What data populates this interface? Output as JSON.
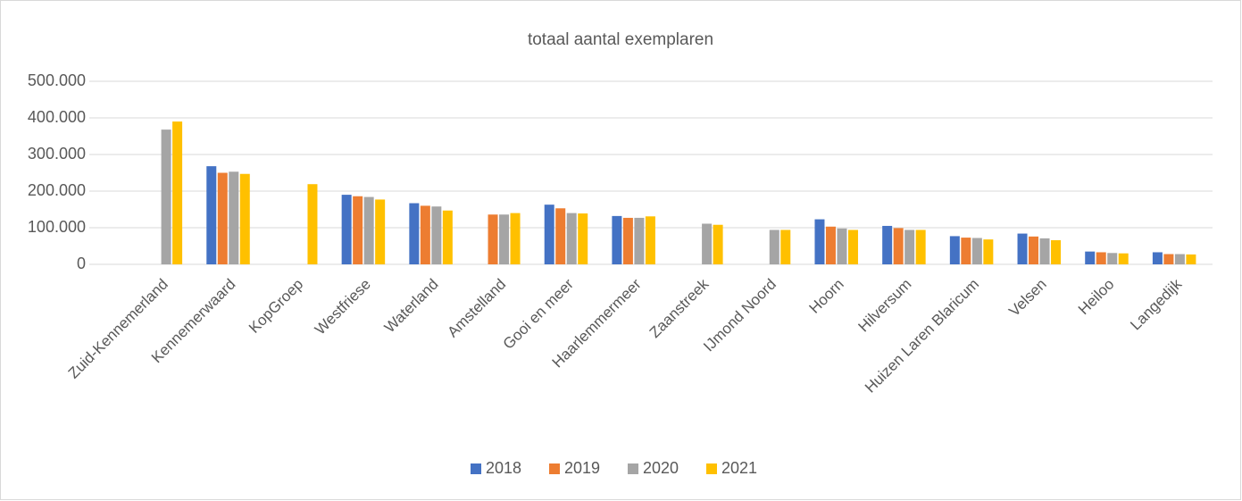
{
  "chart_data": {
    "type": "bar",
    "title": "totaal aantal exemplaren",
    "categories": [
      "Zuid-Kennemerland",
      "Kennemerwaard",
      "KopGroep",
      "Westfriese",
      "Waterland",
      "Amstelland",
      "Gooi en meer",
      "Haarlemmermeer",
      "Zaanstreek",
      "IJmond Noord",
      "Hoorn",
      "Hilversum",
      "Huizen Laren Blaricum",
      "Velsen",
      "Heiloo",
      "Langedijk"
    ],
    "series": [
      {
        "name": "2018",
        "color": "#4472c4",
        "values": [
          null,
          268000,
          null,
          190000,
          167000,
          null,
          163000,
          132000,
          null,
          null,
          123000,
          105000,
          77000,
          84000,
          35000,
          33000
        ]
      },
      {
        "name": "2019",
        "color": "#ed7d31",
        "values": [
          null,
          250000,
          null,
          186000,
          160000,
          136000,
          153000,
          127000,
          null,
          null,
          103000,
          99000,
          73000,
          76000,
          33000,
          28000
        ]
      },
      {
        "name": "2020",
        "color": "#a5a5a5",
        "values": [
          368000,
          253000,
          null,
          184000,
          158000,
          136000,
          140000,
          127000,
          111000,
          94000,
          98000,
          94000,
          72000,
          71000,
          31000,
          28000
        ]
      },
      {
        "name": "2021",
        "color": "#ffc000",
        "values": [
          390000,
          247000,
          219000,
          177000,
          147000,
          140000,
          139000,
          131000,
          108000,
          94000,
          94000,
          94000,
          68000,
          66000,
          30000,
          27000
        ]
      }
    ],
    "ylim": [
      0,
      500000
    ],
    "yticks": [
      0,
      {
        "value": 100000,
        "label": "100.000"
      },
      {
        "value": 200000,
        "label": "200.000"
      },
      {
        "value": 300000,
        "label": "300.000"
      },
      {
        "value": 400000,
        "label": "400.000"
      },
      {
        "value": 500000,
        "label": "500.000"
      }
    ],
    "grid": true,
    "legend": "bottom"
  }
}
